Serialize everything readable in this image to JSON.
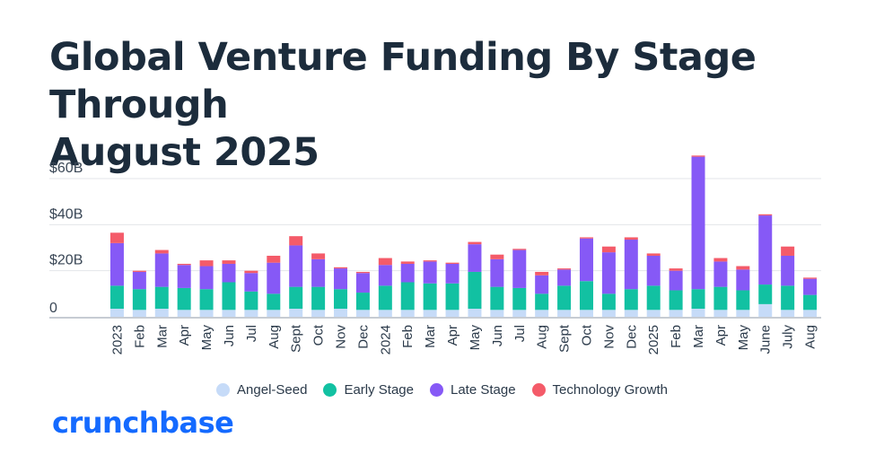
{
  "title_line1": "Global Venture Funding By Stage Through",
  "title_line2": "August 2025",
  "brand": "crunchbase",
  "chart_data": {
    "type": "bar",
    "stacked": true,
    "y_unit_label_format": "$%B",
    "ylim": [
      0,
      70
    ],
    "yticks": [
      {
        "value": 0,
        "label": "0"
      },
      {
        "value": 20,
        "label": "$20B"
      },
      {
        "value": 40,
        "label": "$40B"
      },
      {
        "value": 60,
        "label": "$60B"
      }
    ],
    "categories": [
      "2023",
      "Feb",
      "Mar",
      "Apr",
      "May",
      "Jun",
      "Jul",
      "Aug",
      "Sept",
      "Oct",
      "Nov",
      "Dec",
      "2024",
      "Feb",
      "Mar",
      "Apr",
      "May",
      "Jun",
      "Jul",
      "Aug",
      "Sept",
      "Oct",
      "Nov",
      "Dec",
      "2025",
      "Feb",
      "Mar",
      "Apr",
      "May",
      "June",
      "July",
      "Aug"
    ],
    "series": [
      {
        "name": "Angel-Seed",
        "color": "#c6dbf8",
        "values": [
          3.5,
          3,
          3.5,
          3,
          3,
          3,
          3,
          3,
          3.5,
          3,
          3.5,
          3,
          3,
          3,
          3,
          3,
          3.5,
          3,
          3,
          3,
          3,
          3,
          3,
          3,
          3,
          3,
          3.5,
          3,
          3,
          5.5,
          3,
          3
        ]
      },
      {
        "name": "Early Stage",
        "color": "#12c1a2",
        "values": [
          10,
          9,
          9.5,
          9.5,
          9,
          12,
          8,
          7,
          9.5,
          10,
          8.5,
          7.5,
          10.5,
          12,
          11.5,
          11.5,
          16,
          10,
          9.5,
          7,
          10.5,
          12.5,
          7,
          9,
          10.5,
          8.5,
          8.5,
          10,
          8.5,
          8.5,
          10.5,
          6.5
        ]
      },
      {
        "name": "Late Stage",
        "color": "#8659f6",
        "values": [
          18.5,
          7.5,
          14.5,
          10,
          10,
          8,
          8,
          13.5,
          18,
          12,
          9,
          8.5,
          9,
          8,
          9.5,
          8.5,
          12,
          12,
          16.5,
          8,
          7,
          18.5,
          18,
          21.5,
          13,
          8.5,
          57.5,
          11,
          9,
          30,
          13,
          7
        ]
      },
      {
        "name": "Technology Growth",
        "color": "#f45b69",
        "values": [
          4.5,
          0.5,
          1.5,
          0.5,
          2.5,
          1.5,
          1,
          3,
          4,
          2.5,
          0.5,
          0.5,
          3,
          1,
          0.5,
          0.5,
          1,
          2,
          0.5,
          1.5,
          0.5,
          0.5,
          2.5,
          1,
          1,
          1,
          0.5,
          1.5,
          1.5,
          0.5,
          4,
          0.5
        ]
      }
    ]
  }
}
